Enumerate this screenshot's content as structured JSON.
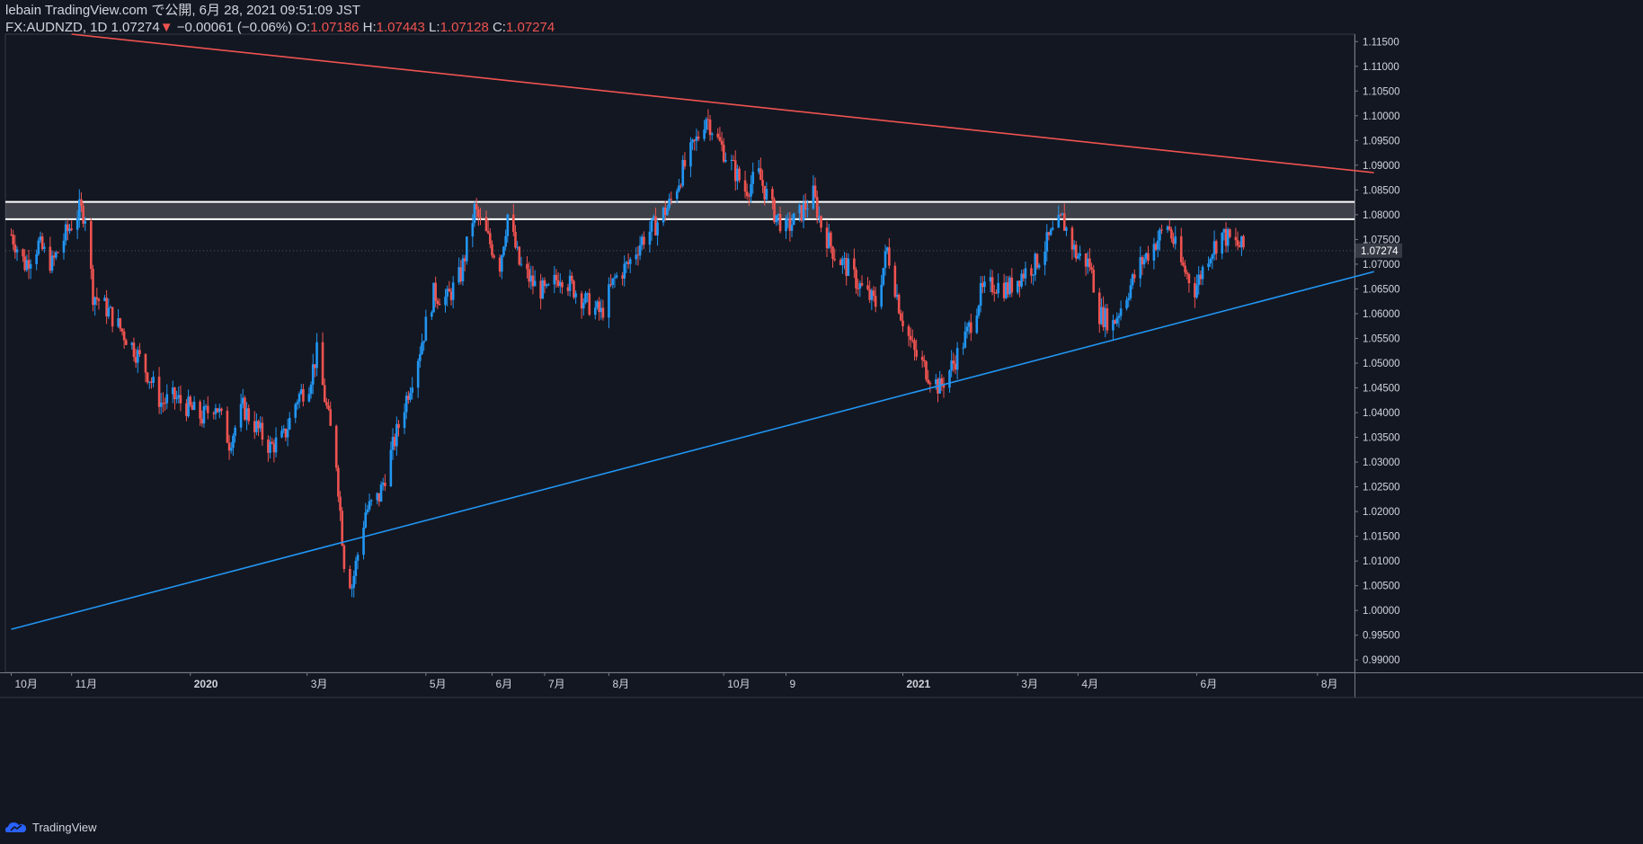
{
  "header": {
    "line1": "lebain TradingView.com で公開, 6月 28, 2021 09:51:09 JST",
    "symbol": "FX:AUDNZD, 1D",
    "last": "1.07274",
    "change_arrow": "▼",
    "change": "−0.00061 (−0.06%)",
    "o_label": "O:",
    "o_value": "1.07186",
    "h_label": "H:",
    "h_value": "1.07443",
    "l_label": "L:",
    "l_value": "1.07128",
    "c_label": "C:",
    "c_value": "1.07274"
  },
  "footer": {
    "brand": "TradingView"
  },
  "colors": {
    "background": "#131722",
    "up": "#2196f3",
    "down": "#ef5350",
    "resistance": "#ef5350",
    "support": "#2196f3",
    "zone_lines": "#ffffff",
    "text": "#d1d4dc",
    "price_label_bg": "#363a45"
  },
  "chart_data": {
    "type": "candlestick",
    "symbol": "AUDNZD",
    "timeframe": "1D",
    "ylim": [
      0.9875,
      1.1165
    ],
    "y_ticks": [
      "1.11500",
      "1.11000",
      "1.10500",
      "1.10000",
      "1.09500",
      "1.09000",
      "1.08500",
      "1.08000",
      "1.07500",
      "1.07000",
      "1.06500",
      "1.06000",
      "1.05500",
      "1.05000",
      "1.04500",
      "1.04000",
      "1.03500",
      "1.03000",
      "1.02500",
      "1.02000",
      "1.01500",
      "1.01000",
      "1.00500",
      "1.00000",
      "0.99500",
      "0.99000"
    ],
    "x_ticks": [
      "10月",
      "11月",
      "2020",
      "3月",
      "5月",
      "6月",
      "7月",
      "8月",
      "10月",
      "9",
      "2021",
      "3月",
      "4月",
      "6月",
      "8月"
    ],
    "current_price_label": "1.07274",
    "close_path": [
      [
        "2019-10-01",
        1.076
      ],
      [
        "2019-10-08",
        1.07
      ],
      [
        "2019-10-15",
        1.074
      ],
      [
        "2019-10-22",
        1.07
      ],
      [
        "2019-10-29",
        1.076
      ],
      [
        "2019-11-05",
        1.081
      ],
      [
        "2019-11-08",
        1.08
      ],
      [
        "2019-11-12",
        1.064
      ],
      [
        "2019-11-19",
        1.061
      ],
      [
        "2019-11-26",
        1.057
      ],
      [
        "2019-12-03",
        1.053
      ],
      [
        "2019-12-10",
        1.048
      ],
      [
        "2019-12-17",
        1.042
      ],
      [
        "2019-12-24",
        1.043
      ],
      [
        "2019-12-31",
        1.041
      ],
      [
        "2020-01-07",
        1.039
      ],
      [
        "2020-01-14",
        1.042
      ],
      [
        "2020-01-21",
        1.034
      ],
      [
        "2020-01-28",
        1.041
      ],
      [
        "2020-02-04",
        1.037
      ],
      [
        "2020-02-11",
        1.033
      ],
      [
        "2020-02-18",
        1.035
      ],
      [
        "2020-02-25",
        1.043
      ],
      [
        "2020-03-02",
        1.046
      ],
      [
        "2020-03-06",
        1.052
      ],
      [
        "2020-03-10",
        1.043
      ],
      [
        "2020-03-16",
        1.03
      ],
      [
        "2020-03-20",
        1.01
      ],
      [
        "2020-03-24",
        1.005
      ],
      [
        "2020-03-31",
        1.02
      ],
      [
        "2020-04-07",
        1.023
      ],
      [
        "2020-04-14",
        1.033
      ],
      [
        "2020-04-21",
        1.043
      ],
      [
        "2020-04-28",
        1.053
      ],
      [
        "2020-05-05",
        1.064
      ],
      [
        "2020-05-12",
        1.063
      ],
      [
        "2020-05-19",
        1.068
      ],
      [
        "2020-05-26",
        1.081
      ],
      [
        "2020-06-02",
        1.075
      ],
      [
        "2020-06-08",
        1.07
      ],
      [
        "2020-06-12",
        1.08
      ],
      [
        "2020-06-18",
        1.07
      ],
      [
        "2020-06-25",
        1.066
      ],
      [
        "2020-07-02",
        1.064
      ],
      [
        "2020-07-09",
        1.068
      ],
      [
        "2020-07-16",
        1.065
      ],
      [
        "2020-07-23",
        1.062
      ],
      [
        "2020-07-30",
        1.06
      ],
      [
        "2020-08-06",
        1.067
      ],
      [
        "2020-08-13",
        1.07
      ],
      [
        "2020-08-20",
        1.075
      ],
      [
        "2020-08-27",
        1.078
      ],
      [
        "2020-09-03",
        1.082
      ],
      [
        "2020-09-10",
        1.089
      ],
      [
        "2020-09-17",
        1.095
      ],
      [
        "2020-09-22",
        1.1
      ],
      [
        "2020-09-28",
        1.095
      ],
      [
        "2020-10-05",
        1.09
      ],
      [
        "2020-10-12",
        1.085
      ],
      [
        "2020-10-19",
        1.088
      ],
      [
        "2020-10-26",
        1.081
      ],
      [
        "2020-11-02",
        1.077
      ],
      [
        "2020-11-09",
        1.08
      ],
      [
        "2020-11-16",
        1.084
      ],
      [
        "2020-11-20",
        1.078
      ],
      [
        "2020-11-27",
        1.072
      ],
      [
        "2020-12-04",
        1.069
      ],
      [
        "2020-12-11",
        1.065
      ],
      [
        "2020-12-18",
        1.062
      ],
      [
        "2020-12-24",
        1.073
      ],
      [
        "2020-12-31",
        1.06
      ],
      [
        "2021-01-07",
        1.052
      ],
      [
        "2021-01-14",
        1.048
      ],
      [
        "2021-01-20",
        1.045
      ],
      [
        "2021-01-27",
        1.05
      ],
      [
        "2021-02-03",
        1.056
      ],
      [
        "2021-02-10",
        1.064
      ],
      [
        "2021-02-17",
        1.066
      ],
      [
        "2021-02-24",
        1.065
      ],
      [
        "2021-03-03",
        1.068
      ],
      [
        "2021-03-10",
        1.07
      ],
      [
        "2021-03-17",
        1.075
      ],
      [
        "2021-03-24",
        1.079
      ],
      [
        "2021-03-31",
        1.072
      ],
      [
        "2021-04-07",
        1.07
      ],
      [
        "2021-04-12",
        1.06
      ],
      [
        "2021-04-19",
        1.058
      ],
      [
        "2021-04-26",
        1.064
      ],
      [
        "2021-05-03",
        1.07
      ],
      [
        "2021-05-10",
        1.074
      ],
      [
        "2021-05-17",
        1.078
      ],
      [
        "2021-05-24",
        1.07
      ],
      [
        "2021-05-31",
        1.065
      ],
      [
        "2021-06-07",
        1.072
      ],
      [
        "2021-06-14",
        1.076
      ],
      [
        "2021-06-21",
        1.074
      ],
      [
        "2021-06-28",
        1.0727
      ]
    ],
    "zone": {
      "upper": 1.0826,
      "lower": 1.0791
    },
    "resistance_line": {
      "start": [
        "2019-11-01",
        1.1165
      ],
      "end": [
        "2021-08-31",
        1.0885
      ]
    },
    "support_line": {
      "start": [
        "2019-10-01",
        0.9962
      ],
      "end": [
        "2021-08-31",
        1.0685
      ]
    }
  }
}
